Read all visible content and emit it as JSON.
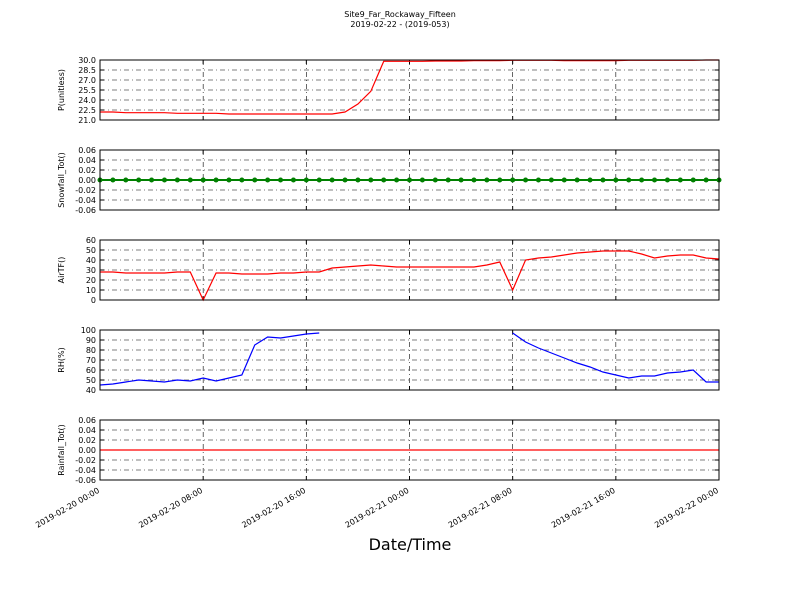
{
  "title": "Site9_Far_Rockaway_Fifteen",
  "subtitle": "2019-02-22 - (2019-053)",
  "xlabel": "Date/Time",
  "xlim": [
    0,
    48
  ],
  "xticks": [
    {
      "value": 0,
      "label": "2019-02-20 00:00"
    },
    {
      "value": 8,
      "label": "2019-02-20 08:00"
    },
    {
      "value": 16,
      "label": "2019-02-20 16:00"
    },
    {
      "value": 24,
      "label": "2019-02-21 00:00"
    },
    {
      "value": 32,
      "label": "2019-02-21 08:00"
    },
    {
      "value": 40,
      "label": "2019-02-21 16:00"
    },
    {
      "value": 48,
      "label": "2019-02-22 00:00"
    }
  ],
  "x": [
    0,
    1,
    2,
    3,
    4,
    5,
    6,
    7,
    8,
    9,
    10,
    11,
    12,
    13,
    14,
    15,
    16,
    17,
    18,
    19,
    20,
    21,
    22,
    23,
    24,
    25,
    26,
    27,
    28,
    29,
    30,
    31,
    32,
    33,
    34,
    35,
    36,
    37,
    38,
    39,
    40,
    41,
    42,
    43,
    44,
    45,
    46,
    47,
    48
  ],
  "chart_data": [
    {
      "type": "line",
      "ylabel": "P(unitless)",
      "ylim": [
        21,
        30
      ],
      "grid": true,
      "yticks": [
        {
          "value": 21,
          "label": "21.0"
        },
        22.5,
        {
          "value": 24,
          "label": "24.0"
        },
        25.5,
        {
          "value": 27,
          "label": "27.0"
        },
        28.5,
        {
          "value": 30,
          "label": "30.0"
        }
      ],
      "series": [
        {
          "color": "#ff0000",
          "marker": false,
          "values": [
            22.2,
            22.2,
            22.1,
            22.1,
            22.1,
            22.1,
            22.0,
            22.0,
            22.0,
            22.0,
            21.9,
            21.9,
            21.9,
            21.9,
            21.9,
            21.9,
            21.9,
            21.9,
            21.9,
            22.2,
            23.4,
            25.3,
            29.8,
            29.8,
            29.8,
            29.8,
            29.85,
            29.85,
            29.85,
            29.9,
            29.9,
            29.9,
            29.95,
            29.95,
            29.95,
            29.95,
            29.9,
            29.9,
            29.9,
            29.9,
            29.9,
            29.95,
            29.95,
            29.95,
            29.95,
            29.95,
            29.95,
            30.0,
            30.0
          ]
        }
      ]
    },
    {
      "type": "line",
      "ylabel": "Snowfall_Tot()",
      "ylim": [
        -0.06,
        0.06
      ],
      "grid": true,
      "yticks": [
        -0.06,
        -0.04,
        -0.02,
        {
          "value": 0,
          "label": "0.00"
        },
        0.02,
        0.04,
        0.06
      ],
      "series": [
        {
          "color": "#008000",
          "marker": true,
          "values": [
            0,
            0,
            0,
            0,
            0,
            0,
            0,
            0,
            0,
            0,
            0,
            0,
            0,
            0,
            0,
            0,
            0,
            0,
            0,
            0,
            0,
            0,
            0,
            0,
            0,
            0,
            0,
            0,
            0,
            0,
            0,
            0,
            0,
            0,
            0,
            0,
            0,
            0,
            0,
            0,
            0,
            0,
            0,
            0,
            0,
            0,
            0,
            0,
            0
          ]
        }
      ]
    },
    {
      "type": "line",
      "ylabel": "AirTF()",
      "ylim": [
        0,
        60
      ],
      "grid": true,
      "yticks": [
        0,
        10,
        20,
        30,
        40,
        50,
        60
      ],
      "series": [
        {
          "color": "#ff0000",
          "marker": false,
          "values": [
            28,
            28,
            27,
            27,
            27,
            27,
            28,
            28,
            0,
            27,
            27,
            26,
            26,
            26,
            27,
            27,
            28,
            28,
            32,
            33,
            34,
            35,
            34,
            33,
            33,
            33,
            33,
            33,
            33,
            33,
            35,
            38,
            10,
            40,
            42,
            43,
            45,
            47,
            48,
            49,
            49,
            49,
            46,
            42,
            44,
            45,
            45,
            42,
            41
          ]
        }
      ]
    },
    {
      "type": "line",
      "ylabel": "RH(%)",
      "ylim": [
        40,
        100
      ],
      "grid": true,
      "yticks": [
        40,
        50,
        60,
        70,
        80,
        90,
        100
      ],
      "series": [
        {
          "color": "#0000ff",
          "marker": false,
          "values": [
            45,
            46,
            48,
            50,
            49,
            48,
            50,
            49,
            52,
            49,
            52,
            55,
            85,
            93,
            92,
            94,
            96,
            97,
            null,
            null,
            null,
            null,
            null,
            null,
            null,
            null,
            null,
            null,
            null,
            null,
            null,
            null,
            97,
            88,
            82,
            77,
            72,
            67,
            63,
            58,
            55,
            52,
            54,
            54,
            57,
            58,
            60,
            48,
            48
          ]
        }
      ]
    },
    {
      "type": "line",
      "ylabel": "Rainfall_Tot()",
      "ylim": [
        -0.06,
        0.06
      ],
      "grid": true,
      "yticks": [
        -0.06,
        -0.04,
        -0.02,
        {
          "value": 0,
          "label": "0.00"
        },
        0.02,
        0.04,
        0.06
      ],
      "series": [
        {
          "color": "#ff0000",
          "marker": false,
          "values": [
            0,
            0,
            0,
            0,
            0,
            0,
            0,
            0,
            0,
            0,
            0,
            0,
            0,
            0,
            0,
            0,
            0,
            0,
            0,
            0,
            0,
            0,
            0,
            0,
            0,
            0,
            0,
            0,
            0,
            0,
            0,
            0,
            0,
            0,
            0,
            0,
            0,
            0,
            0,
            0,
            0,
            0,
            0,
            0,
            0,
            0,
            0,
            0,
            0
          ]
        }
      ]
    }
  ]
}
